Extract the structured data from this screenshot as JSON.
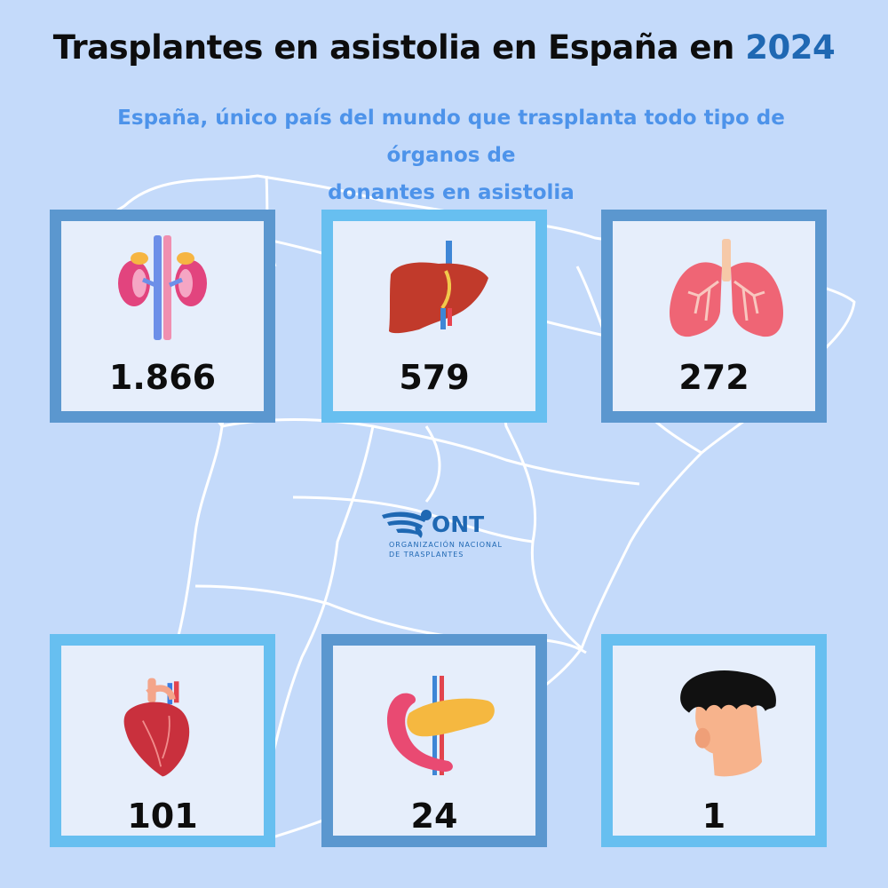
{
  "title": {
    "text": "Trasplantes en asistolia en España en",
    "year": "2024"
  },
  "subtitle": {
    "line1": "España, único país del mundo que trasplanta todo tipo de órganos de",
    "line2": "donantes en asistolia"
  },
  "logo": {
    "acronym": "ONT",
    "line1": "ORGANIZACIÓN NACIONAL",
    "line2": "DE TRASPLANTES"
  },
  "organs": [
    {
      "icon": "kidney-icon",
      "value": "1.866"
    },
    {
      "icon": "liver-icon",
      "value": "579"
    },
    {
      "icon": "lungs-icon",
      "value": "272"
    },
    {
      "icon": "heart-icon",
      "value": "101"
    },
    {
      "icon": "pancreas-icon",
      "value": "24"
    },
    {
      "icon": "face-icon",
      "value": "1"
    }
  ],
  "colors": {
    "background": "#c4dafa",
    "year": "#1f68b3",
    "subtitle": "#4d93ea",
    "card_border_dark": "#5b97cf",
    "card_border_light": "#67bff0"
  }
}
